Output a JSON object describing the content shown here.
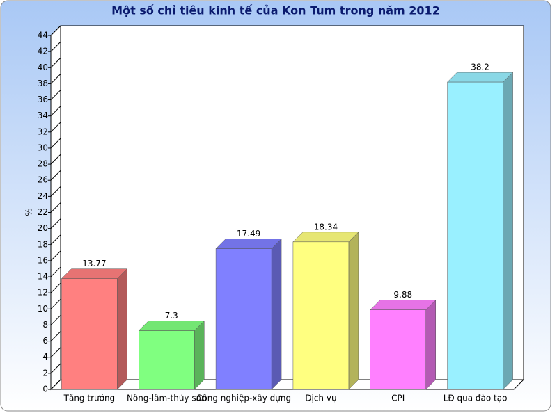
{
  "chart_data": {
    "type": "bar3d",
    "title": "Một số chỉ tiêu kinh tế của Kon Tum trong năm 2012",
    "y_label": "%",
    "categories": [
      "Tăng trưởng",
      "Nông-lâm-thủy sản",
      "Công nghiệp-xây dựng",
      "Dịch vụ",
      "CPI",
      "LĐ qua đào tạo"
    ],
    "values": [
      13.77,
      7.3,
      17.49,
      18.34,
      9.88,
      38.2
    ],
    "colors": [
      "#ff8080",
      "#80ff80",
      "#8080ff",
      "#ffff80",
      "#ff80ff",
      "#99f0ff"
    ],
    "ylim": [
      0,
      44
    ],
    "yticks": [
      0,
      2,
      4,
      6,
      8,
      10,
      12,
      14,
      16,
      18,
      20,
      22,
      24,
      26,
      28,
      30,
      32,
      34,
      36,
      38,
      40,
      42,
      44
    ]
  }
}
